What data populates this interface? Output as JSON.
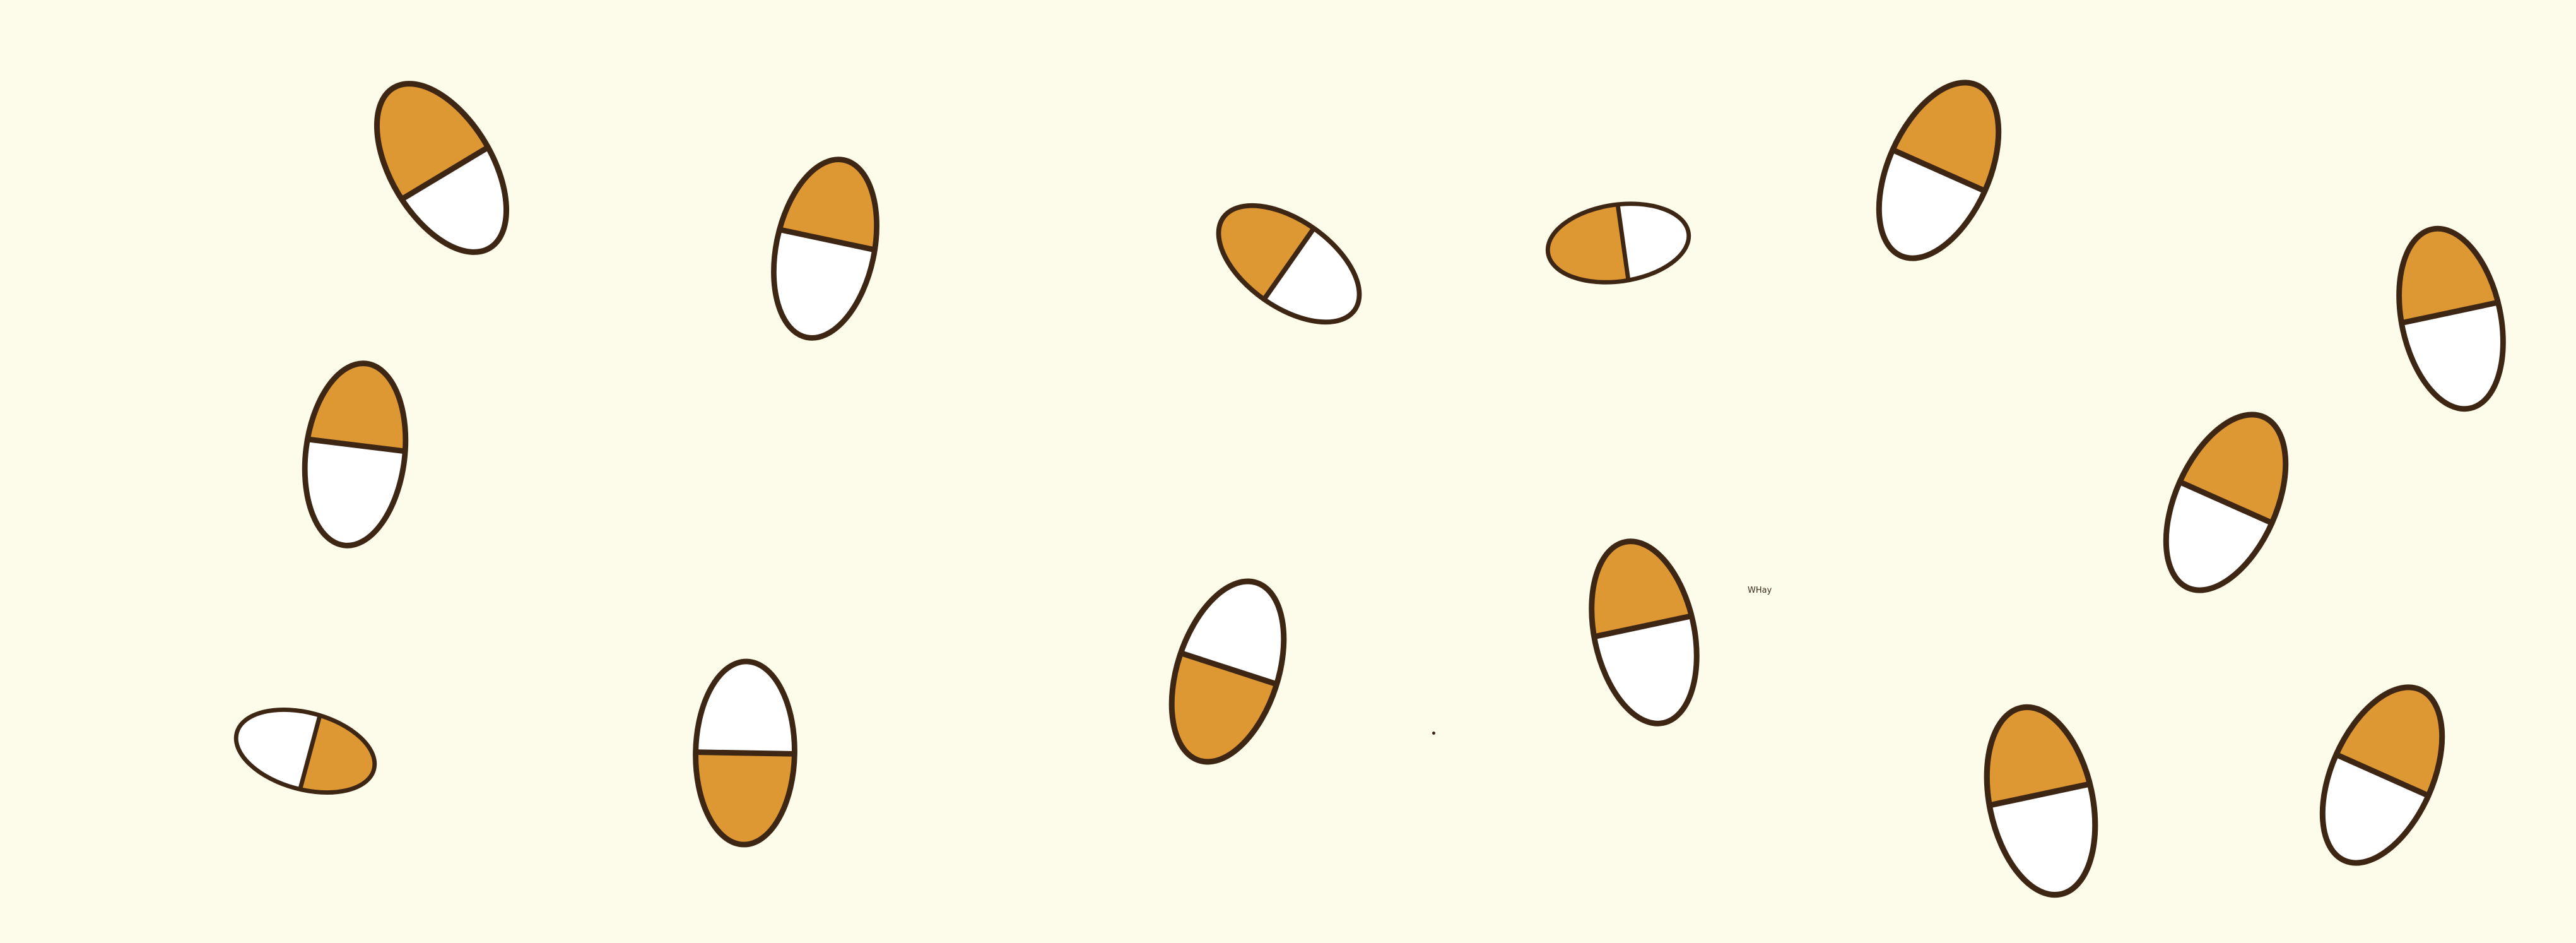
{
  "colors": {
    "background": "#fdfbea",
    "fill": "#dd9733",
    "empty": "#ffffff",
    "stroke": "#3e2615"
  },
  "label": {
    "text": "WHay"
  },
  "items": [
    {
      "name": "oval-1"
    },
    {
      "name": "oval-2"
    },
    {
      "name": "oval-3"
    },
    {
      "name": "oval-4"
    },
    {
      "name": "oval-5"
    },
    {
      "name": "oval-6"
    },
    {
      "name": "oval-7"
    },
    {
      "name": "oval-8"
    },
    {
      "name": "oval-9"
    },
    {
      "name": "oval-10"
    },
    {
      "name": "oval-11"
    },
    {
      "name": "oval-12"
    },
    {
      "name": "oval-13"
    },
    {
      "name": "oval-14"
    },
    {
      "name": "oval-15"
    }
  ]
}
